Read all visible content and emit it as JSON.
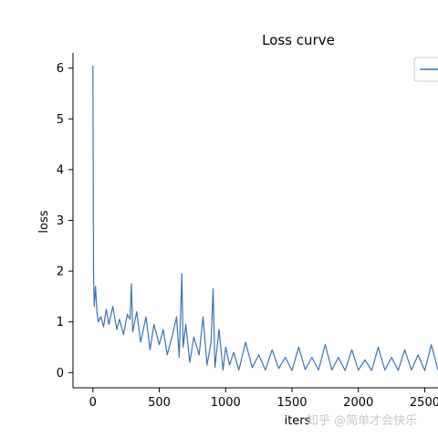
{
  "chart_data": {
    "type": "line",
    "title": "Loss curve",
    "xlabel": "iters",
    "ylabel": "loss",
    "xlim": [
      -150,
      2600
    ],
    "ylim": [
      -0.3,
      6.3
    ],
    "xticks": [
      0,
      500,
      1000,
      1500,
      2000,
      2500
    ],
    "xtick_labels": [
      "0",
      "500",
      "1000",
      "1500",
      "2000",
      "2500"
    ],
    "yticks": [
      0,
      1,
      2,
      3,
      4,
      5,
      6
    ],
    "ytick_labels": [
      "0",
      "1",
      "2",
      "3",
      "4",
      "5",
      "6"
    ],
    "grid": false,
    "legend_position": "top-right",
    "series": [
      {
        "color": "#3b73b4",
        "x": [
          0,
          5,
          10,
          20,
          30,
          40,
          60,
          80,
          100,
          120,
          150,
          180,
          200,
          230,
          260,
          280,
          290,
          300,
          330,
          360,
          400,
          430,
          460,
          500,
          530,
          560,
          600,
          630,
          650,
          670,
          680,
          700,
          730,
          760,
          800,
          830,
          860,
          890,
          905,
          920,
          950,
          980,
          1000,
          1030,
          1060,
          1100,
          1150,
          1200,
          1250,
          1300,
          1350,
          1400,
          1450,
          1500,
          1550,
          1600,
          1650,
          1700,
          1750,
          1800,
          1850,
          1900,
          1950,
          2000,
          2050,
          2100,
          2150,
          2200,
          2250,
          2300,
          2350,
          2400,
          2450,
          2500,
          2550,
          2600
        ],
        "y": [
          6.05,
          1.95,
          1.3,
          1.7,
          1.2,
          1.0,
          1.1,
          0.9,
          1.25,
          0.95,
          1.3,
          0.85,
          1.05,
          0.75,
          1.15,
          1.05,
          1.75,
          0.8,
          1.2,
          0.6,
          1.1,
          0.45,
          0.95,
          0.55,
          0.85,
          0.35,
          0.75,
          1.1,
          0.3,
          1.95,
          0.5,
          0.95,
          0.2,
          0.7,
          0.35,
          1.1,
          0.15,
          0.6,
          1.65,
          0.1,
          0.85,
          0.05,
          0.5,
          0.15,
          0.4,
          0.05,
          0.6,
          0.1,
          0.35,
          0.05,
          0.45,
          0.08,
          0.3,
          0.04,
          0.5,
          0.06,
          0.3,
          0.05,
          0.55,
          0.05,
          0.3,
          0.04,
          0.45,
          0.05,
          0.25,
          0.04,
          0.5,
          0.05,
          0.3,
          0.04,
          0.45,
          0.05,
          0.35,
          0.04,
          0.55,
          0.05
        ]
      }
    ]
  },
  "watermark": "知乎 @简单才会快乐"
}
